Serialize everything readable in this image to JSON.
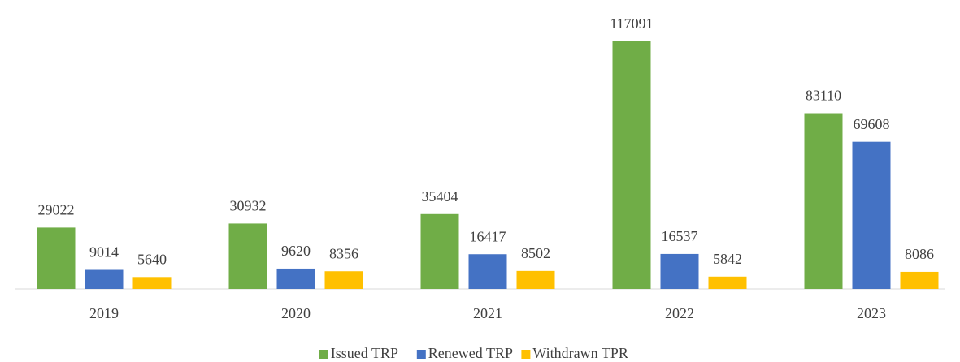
{
  "chart_data": {
    "type": "bar",
    "categories": [
      "2019",
      "2020",
      "2021",
      "2022",
      "2023"
    ],
    "series": [
      {
        "name": "Issued TRP",
        "color": "#70ad47",
        "values": [
          29022,
          30932,
          35404,
          117091,
          83110
        ]
      },
      {
        "name": "Renewed TRP",
        "color": "#4472c4",
        "values": [
          9014,
          9620,
          16417,
          16537,
          69608
        ]
      },
      {
        "name": "Withdrawn TPR",
        "color": "#ffc000",
        "values": [
          5640,
          8356,
          8502,
          5842,
          8086
        ]
      }
    ],
    "legend": "bottom"
  }
}
